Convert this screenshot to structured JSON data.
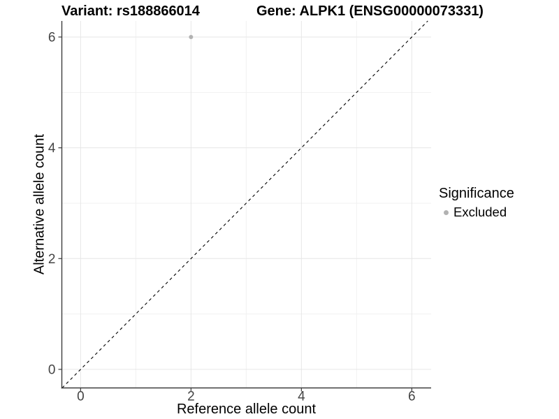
{
  "chart_data": {
    "type": "scatter",
    "titles": {
      "left": "Variant: rs188866014",
      "right": "Gene: ALPK1 (ENSG00000073331)"
    },
    "xlabel": "Reference allele count",
    "ylabel": "Alternative allele count",
    "xlim": [
      -0.34,
      6.35
    ],
    "ylim": [
      -0.335,
      6.29
    ],
    "x_ticks": {
      "major": [
        0,
        2,
        4,
        6
      ],
      "minor": [
        1,
        3,
        5
      ],
      "labels": [
        "0",
        "2",
        "4",
        "6"
      ]
    },
    "y_ticks": {
      "major": [
        0,
        2,
        4,
        6
      ],
      "minor": [
        1,
        3,
        5
      ],
      "labels": [
        "0",
        "2",
        "4",
        "6"
      ]
    },
    "grid": "major+minor",
    "reference_line": {
      "kind": "identity y=x",
      "style": "dashed",
      "color": "#000000"
    },
    "series": [
      {
        "name": "Excluded",
        "color": "#b2b2b2",
        "points": [
          [
            2,
            6
          ]
        ]
      }
    ],
    "legend": {
      "title": "Significance",
      "position": "right",
      "items": [
        {
          "label": "Excluded",
          "color": "#b2b2b2"
        }
      ]
    },
    "colors": {
      "background": "#ffffff",
      "grid_major": "#e6e6e6",
      "grid_minor": "#f1f1f1",
      "axis_line": "#3d3d3d",
      "tick_label": "#444444",
      "point": "#b2b2b2"
    }
  }
}
